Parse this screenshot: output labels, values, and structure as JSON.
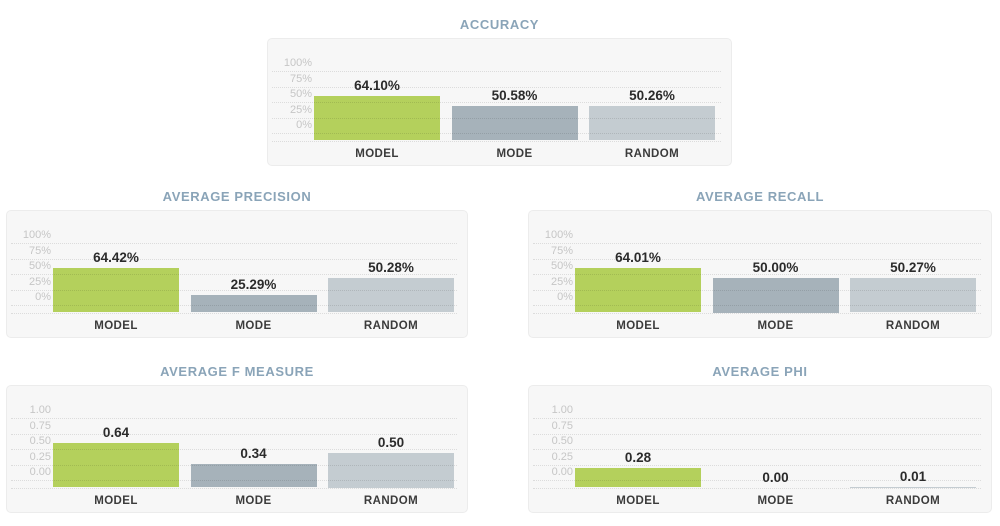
{
  "page": {
    "background": "#ffffff",
    "description_labels": {
      "model": "MODEL",
      "mode": "MODE",
      "random": "RANDOM"
    }
  },
  "colors": {
    "bar_model": "#b4d05c",
    "bar_mode": "#a6b2ba",
    "bar_random": "#c4ccd1",
    "title_text": "#8aa4b8",
    "value_label_text": "#2b2b2b",
    "category_label_text": "#3b3b3b",
    "tick_label_text": "#c6c6c6",
    "panel_background": "#f7f7f7",
    "panel_border": "#ececec"
  },
  "chart_data": [
    {
      "type": "bar",
      "title": "ACCURACY",
      "categories": [
        "MODEL",
        "MODE",
        "RANDOM"
      ],
      "values": [
        64.1,
        50.58,
        50.26
      ],
      "value_labels": [
        "64.10%",
        "50.58%",
        "50.26%"
      ],
      "tick_labels": [
        "100%",
        "75%",
        "50%",
        "25%",
        "0%"
      ],
      "ylim": [
        0,
        100
      ],
      "unit": "%",
      "grid": "dotted-horizontal",
      "legend": "none"
    },
    {
      "type": "bar",
      "title": "AVERAGE PRECISION",
      "categories": [
        "MODEL",
        "MODE",
        "RANDOM"
      ],
      "values": [
        64.42,
        25.29,
        50.28
      ],
      "value_labels": [
        "64.42%",
        "25.29%",
        "50.28%"
      ],
      "tick_labels": [
        "100%",
        "75%",
        "50%",
        "25%",
        "0%"
      ],
      "ylim": [
        0,
        100
      ],
      "unit": "%",
      "grid": "dotted-horizontal",
      "legend": "none"
    },
    {
      "type": "bar",
      "title": "AVERAGE RECALL",
      "categories": [
        "MODEL",
        "MODE",
        "RANDOM"
      ],
      "values": [
        64.01,
        50.0,
        50.27
      ],
      "value_labels": [
        "64.01%",
        "50.00%",
        "50.27%"
      ],
      "tick_labels": [
        "100%",
        "75%",
        "50%",
        "25%",
        "0%"
      ],
      "ylim": [
        0,
        100
      ],
      "unit": "%",
      "grid": "dotted-horizontal",
      "legend": "none"
    },
    {
      "type": "bar",
      "title": "AVERAGE F MEASURE",
      "categories": [
        "MODEL",
        "MODE",
        "RANDOM"
      ],
      "values": [
        0.64,
        0.34,
        0.5
      ],
      "value_labels": [
        "0.64",
        "0.34",
        "0.50"
      ],
      "tick_labels": [
        "1.00",
        "0.75",
        "0.50",
        "0.25",
        "0.00"
      ],
      "ylim": [
        0,
        1
      ],
      "unit": "",
      "grid": "dotted-horizontal",
      "legend": "none"
    },
    {
      "type": "bar",
      "title": "AVERAGE PHI",
      "categories": [
        "MODEL",
        "MODE",
        "RANDOM"
      ],
      "values": [
        0.28,
        0.0,
        0.01
      ],
      "value_labels": [
        "0.28",
        "0.00",
        "0.01"
      ],
      "tick_labels": [
        "1.00",
        "0.75",
        "0.50",
        "0.25",
        "0.00"
      ],
      "ylim": [
        0,
        1
      ],
      "unit": "",
      "grid": "dotted-horizontal",
      "legend": "none"
    }
  ]
}
